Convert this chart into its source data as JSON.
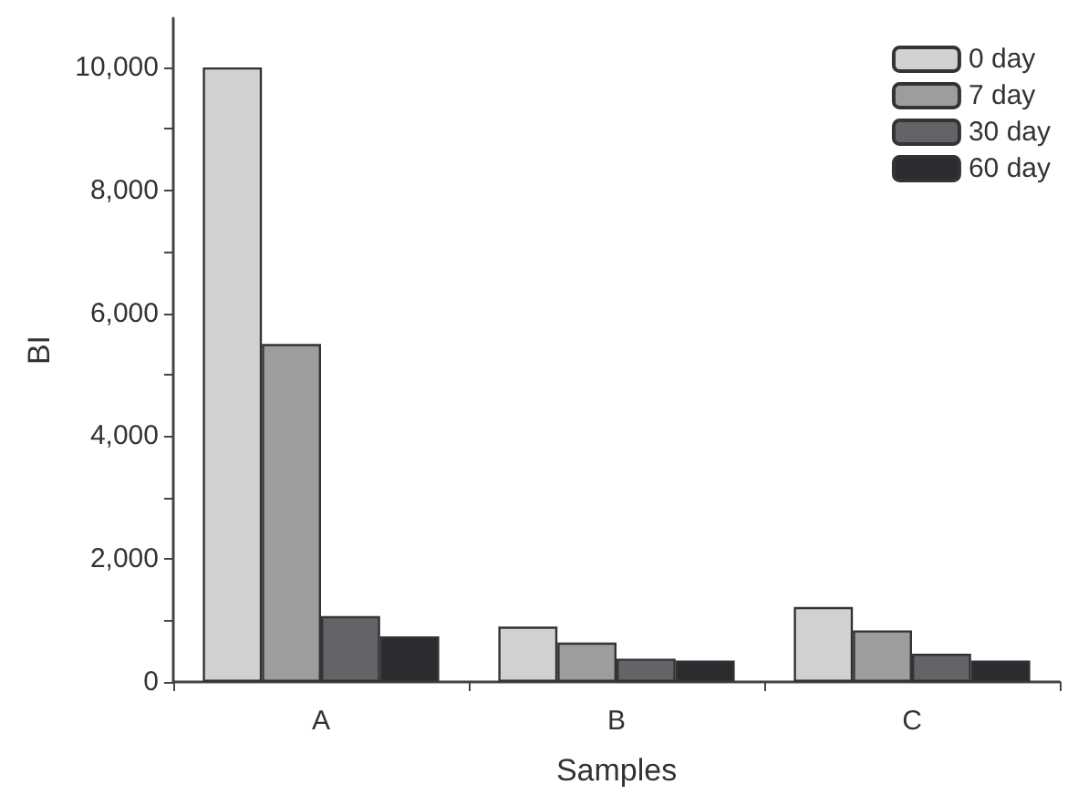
{
  "chart_data": {
    "type": "bar",
    "xlabel": "Samples",
    "ylabel": "BI",
    "categories": [
      "A",
      "B",
      "C"
    ],
    "series": [
      {
        "name": "0 day",
        "color": "#d0d1d3",
        "values": [
          10000,
          900,
          1220
        ]
      },
      {
        "name": "7 day",
        "color": "#9c9d9f",
        "values": [
          5500,
          640,
          840
        ]
      },
      {
        "name": "30 day",
        "color": "#636467",
        "values": [
          1070,
          380,
          460
        ]
      },
      {
        "name": "60 day",
        "color": "#2b2c30",
        "values": [
          740,
          350,
          350
        ]
      }
    ],
    "ylim": [
      0,
      10800
    ],
    "yticks": [
      {
        "value": 0,
        "label": "0"
      },
      {
        "value": 1000,
        "label": null
      },
      {
        "value": 2000,
        "label": "2,000"
      },
      {
        "value": 3000,
        "label": null
      },
      {
        "value": 4000,
        "label": "4,000"
      },
      {
        "value": 5000,
        "label": null
      },
      {
        "value": 6000,
        "label": "6,000"
      },
      {
        "value": 7000,
        "label": null
      },
      {
        "value": 8000,
        "label": "8,000"
      },
      {
        "value": 9000,
        "label": null
      },
      {
        "value": 10000,
        "label": "10,000"
      }
    ],
    "grid": false,
    "legend": "top right"
  }
}
